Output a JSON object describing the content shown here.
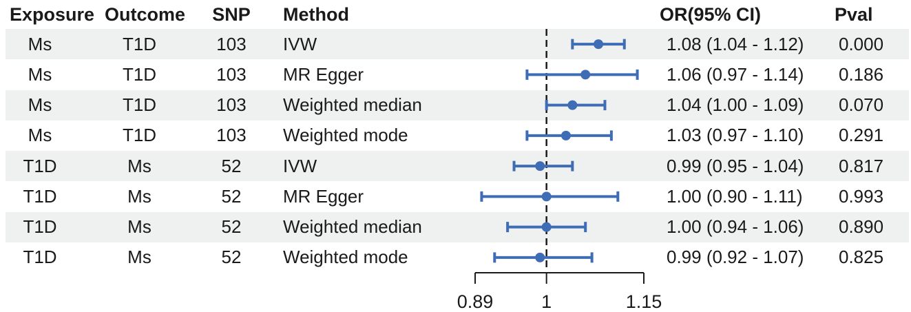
{
  "figure": {
    "headers": {
      "exposure": "Exposure",
      "outcome": "Outcome",
      "snp": "SNP",
      "method": "Method",
      "or_ci": "OR(95% CI)",
      "pval": "Pval"
    }
  },
  "table": {
    "rows": [
      {
        "exposure": "Ms",
        "outcome": "T1D",
        "snp": "103",
        "method": "IVW",
        "or_ci": "1.08 (1.04 - 1.12)",
        "pval": "0.000"
      },
      {
        "exposure": "Ms",
        "outcome": "T1D",
        "snp": "103",
        "method": "MR Egger",
        "or_ci": "1.06 (0.97 - 1.14)",
        "pval": "0.186"
      },
      {
        "exposure": "Ms",
        "outcome": "T1D",
        "snp": "103",
        "method": "Weighted median",
        "or_ci": "1.04 (1.00 - 1.09)",
        "pval": "0.070"
      },
      {
        "exposure": "Ms",
        "outcome": "T1D",
        "snp": "103",
        "method": "Weighted mode",
        "or_ci": "1.03 (0.97 - 1.10)",
        "pval": "0.291"
      },
      {
        "exposure": "T1D",
        "outcome": "Ms",
        "snp": "52",
        "method": "IVW",
        "or_ci": "0.99 (0.95 - 1.04)",
        "pval": "0.817"
      },
      {
        "exposure": "T1D",
        "outcome": "Ms",
        "snp": "52",
        "method": "MR Egger",
        "or_ci": "1.00 (0.90 - 1.11)",
        "pval": "0.993"
      },
      {
        "exposure": "T1D",
        "outcome": "Ms",
        "snp": "52",
        "method": "Weighted median",
        "or_ci": "1.00 (0.94 - 1.06)",
        "pval": "0.890"
      },
      {
        "exposure": "T1D",
        "outcome": "Ms",
        "snp": "52",
        "method": "Weighted mode",
        "or_ci": "0.99 (0.92 - 1.07)",
        "pval": "0.825"
      }
    ]
  },
  "chart_data": {
    "type": "scatter",
    "subtype": "forest-plot",
    "title": "",
    "xlabel": "",
    "ylabel": "",
    "x_axis": {
      "scale": "linear",
      "range": [
        0.89,
        1.15
      ],
      "tick_values": [
        0.89,
        1,
        1.15
      ],
      "tick_labels": [
        "0.89",
        "1",
        "1.15"
      ],
      "reference_line": 1
    },
    "series": [
      {
        "label": "Ms to T1D - IVW",
        "or": 1.08,
        "ci_low": 1.04,
        "ci_high": 1.12,
        "pval": 0.0
      },
      {
        "label": "Ms to T1D - MR Egger",
        "or": 1.06,
        "ci_low": 0.97,
        "ci_high": 1.14,
        "pval": 0.186
      },
      {
        "label": "Ms to T1D - Weighted median",
        "or": 1.04,
        "ci_low": 1.0,
        "ci_high": 1.09,
        "pval": 0.07
      },
      {
        "label": "Ms to T1D - Weighted mode",
        "or": 1.03,
        "ci_low": 0.97,
        "ci_high": 1.1,
        "pval": 0.291
      },
      {
        "label": "T1D to Ms - IVW",
        "or": 0.99,
        "ci_low": 0.95,
        "ci_high": 1.04,
        "pval": 0.817
      },
      {
        "label": "T1D to Ms - MR Egger",
        "or": 1.0,
        "ci_low": 0.9,
        "ci_high": 1.11,
        "pval": 0.993
      },
      {
        "label": "T1D to Ms - Weighted median",
        "or": 1.0,
        "ci_low": 0.94,
        "ci_high": 1.06,
        "pval": 0.89
      },
      {
        "label": "T1D to Ms - Weighted mode",
        "or": 0.99,
        "ci_low": 0.92,
        "ci_high": 1.07,
        "pval": 0.825
      }
    ]
  },
  "colors": {
    "marker": "#3e6db5",
    "row_shade": "#eff1f0",
    "text": "#1a1a1a",
    "axis": "#1a1a1a"
  }
}
